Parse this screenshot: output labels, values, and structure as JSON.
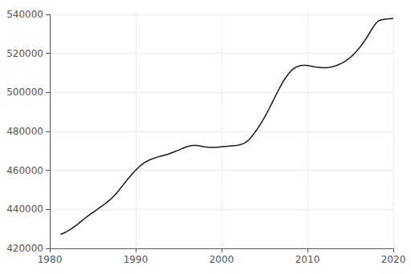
{
  "chart_data": {
    "type": "line",
    "x": [
      1981.25,
      1981.5,
      1981.75,
      1982.0,
      1982.25,
      1982.5,
      1982.75,
      1983.0,
      1983.25,
      1983.5,
      1983.75,
      1984.0,
      1984.25,
      1984.5,
      1984.75,
      1985.0,
      1985.25,
      1985.5,
      1985.75,
      1986.0,
      1986.25,
      1986.5,
      1986.75,
      1987.0,
      1987.25,
      1987.5,
      1987.75,
      1988.0,
      1988.25,
      1988.5,
      1988.75,
      1989.0,
      1989.25,
      1989.5,
      1989.75,
      1990.0,
      1990.25,
      1990.5,
      1990.75,
      1991.0,
      1991.25,
      1991.5,
      1991.75,
      1992.0,
      1992.25,
      1992.5,
      1992.75,
      1993.0,
      1993.25,
      1993.5,
      1993.75,
      1994.0,
      1994.25,
      1994.5,
      1994.75,
      1995.0,
      1995.25,
      1995.5,
      1995.75,
      1996.0,
      1996.25,
      1996.5,
      1996.75,
      1997.0,
      1997.25,
      1997.5,
      1997.75,
      1998.0,
      1998.25,
      1998.5,
      1998.75,
      1999.0,
      1999.25,
      1999.5,
      1999.75,
      2000.0,
      2000.25,
      2000.5,
      2000.75,
      2001.0,
      2001.25,
      2001.5,
      2001.75,
      2002.0,
      2002.25,
      2002.5,
      2002.75,
      2003.0,
      2003.25,
      2003.5,
      2003.75,
      2004.0,
      2004.25,
      2004.5,
      2004.75,
      2005.0,
      2005.25,
      2005.5,
      2005.75,
      2006.0,
      2006.25,
      2006.5,
      2006.75,
      2007.0,
      2007.25,
      2007.5,
      2007.75,
      2008.0,
      2008.25,
      2008.5,
      2008.75,
      2009.0,
      2009.25,
      2009.5,
      2009.75,
      2010.0,
      2010.25,
      2010.5,
      2010.75,
      2011.0,
      2011.25,
      2011.5,
      2011.75,
      2012.0,
      2012.25,
      2012.5,
      2012.75,
      2013.0,
      2013.25,
      2013.5,
      2013.75,
      2014.0,
      2014.25,
      2014.5,
      2014.75,
      2015.0,
      2015.25,
      2015.5,
      2015.75,
      2016.0,
      2016.25,
      2016.5,
      2016.75,
      2017.0,
      2017.25,
      2017.5,
      2017.75,
      2018.0,
      2018.25,
      2018.5,
      2018.75,
      2019.0,
      2019.25,
      2019.5,
      2019.75,
      2020.0
    ],
    "values": [
      427200,
      427600,
      428100,
      428700,
      429300,
      430000,
      430800,
      431600,
      432400,
      433300,
      434200,
      435100,
      436000,
      436800,
      437600,
      438300,
      439100,
      439900,
      440700,
      441500,
      442300,
      443100,
      444000,
      444900,
      445900,
      447000,
      448200,
      449500,
      450900,
      452300,
      453700,
      455100,
      456400,
      457700,
      458900,
      460100,
      461200,
      462200,
      463100,
      463900,
      464500,
      465100,
      465600,
      466000,
      466400,
      466800,
      467100,
      467400,
      467700,
      468000,
      468300,
      468700,
      469100,
      469500,
      470000,
      470400,
      470900,
      471400,
      471800,
      472200,
      472500,
      472700,
      472800,
      472800,
      472700,
      472500,
      472300,
      472100,
      472000,
      471900,
      471800,
      471800,
      471800,
      471900,
      472000,
      472100,
      472200,
      472300,
      472400,
      472500,
      472600,
      472700,
      472800,
      473000,
      473300,
      473700,
      474200,
      475000,
      476000,
      477300,
      478700,
      480200,
      481800,
      483500,
      485300,
      487200,
      489200,
      491300,
      493500,
      495700,
      497900,
      500100,
      502200,
      504200,
      506100,
      507800,
      509300,
      510600,
      511700,
      512500,
      513100,
      513500,
      513800,
      513900,
      513900,
      513800,
      513600,
      513400,
      513200,
      513000,
      512900,
      512800,
      512700,
      512700,
      512700,
      512800,
      513000,
      513300,
      513600,
      514000,
      514500,
      515000,
      515600,
      516300,
      517100,
      518000,
      519000,
      520100,
      521300,
      522600,
      524000,
      525500,
      527100,
      528800,
      530600,
      532400,
      534100,
      535600,
      536600,
      537100,
      537300,
      537500,
      537600,
      537700,
      537800,
      537900
    ],
    "color": "#1a1a1a",
    "xlim": [
      1980,
      2020
    ],
    "ylim": [
      420000,
      540000
    ],
    "xticks": [
      1980,
      1990,
      2000,
      2010,
      2020
    ],
    "yticks": [
      420000,
      440000,
      460000,
      480000,
      500000,
      520000,
      540000
    ],
    "grid": true
  }
}
